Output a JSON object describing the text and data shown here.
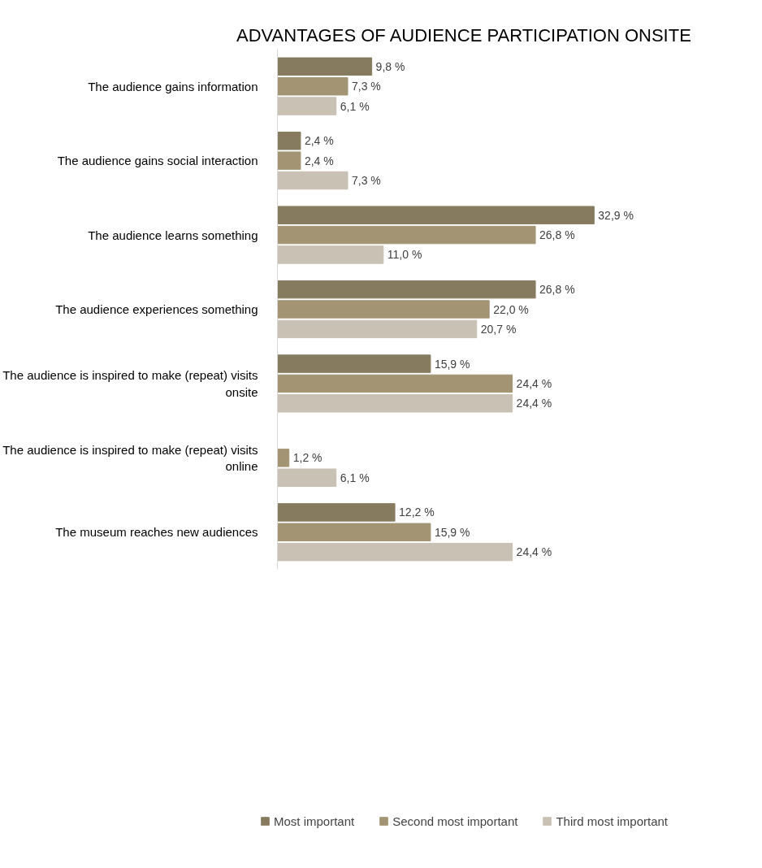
{
  "chart_data": {
    "type": "bar",
    "orientation": "horizontal",
    "title": "ADVANTAGES OF AUDIENCE PARTICIPATION ONSITE",
    "categories": [
      "The audience gains information",
      "The audience gains social interaction",
      "The audience learns something",
      "The audience experiences something",
      "The audience is inspired to make (repeat) visits onsite",
      "The audience is inspired to make (repeat) visits online",
      "The museum reaches new audiences"
    ],
    "series": [
      {
        "name": "Most important",
        "color": "#877b5f",
        "values": [
          9.8,
          2.4,
          32.9,
          26.8,
          15.9,
          null,
          12.2
        ],
        "value_labels": [
          "9,8 %",
          "2,4 %",
          "32,9 %",
          "26,8 %",
          "15,9 %",
          null,
          "12,2 %"
        ]
      },
      {
        "name": "Second most important",
        "color": "#a39574",
        "values": [
          7.3,
          2.4,
          26.8,
          22.0,
          24.4,
          1.2,
          15.9
        ],
        "value_labels": [
          "7,3 %",
          "2,4 %",
          "26,8 %",
          "22,0 %",
          "24,4 %",
          "1,2 %",
          "15,9 %"
        ]
      },
      {
        "name": "Third most important",
        "color": "#c9c1b3",
        "values": [
          6.1,
          7.3,
          11.0,
          20.7,
          24.4,
          6.1,
          24.4
        ],
        "value_labels": [
          "6,1 %",
          "7,3 %",
          "11,0 %",
          "20,7 %",
          "24,4 %",
          "6,1 %",
          "24,4 %"
        ]
      }
    ],
    "tick_labels": "y",
    "grid": false,
    "legend": "bottom"
  }
}
